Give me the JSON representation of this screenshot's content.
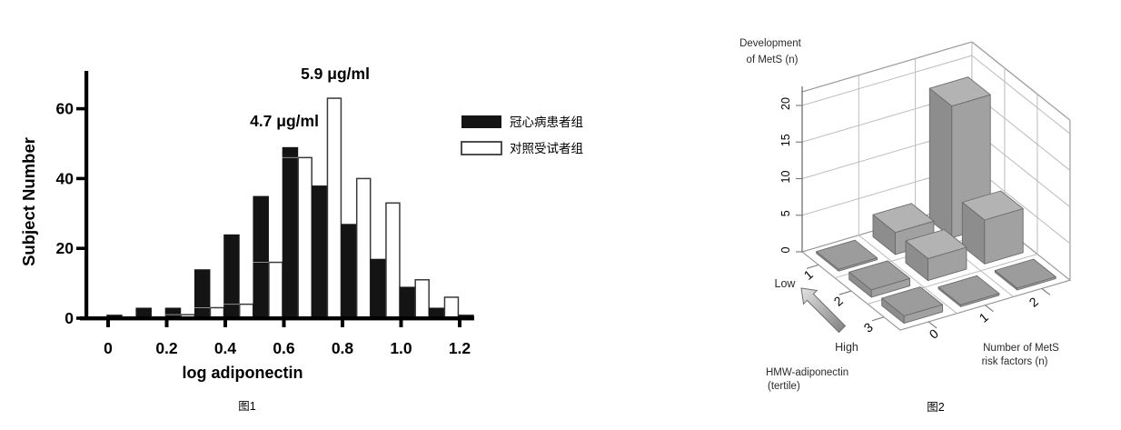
{
  "chart_data": [
    {
      "id": "figure-1",
      "type": "bar",
      "title": "图1",
      "xlabel": "log adiponectin",
      "ylabel": "Subject Number",
      "bin_width": 0.1,
      "categories": [
        0.0,
        0.1,
        0.2,
        0.3,
        0.4,
        0.5,
        0.6,
        0.7,
        0.8,
        0.9,
        1.0,
        1.1,
        1.2
      ],
      "series": [
        {
          "name": "冠心病患者组",
          "color": "#141414",
          "values": [
            1,
            3,
            3,
            14,
            24,
            35,
            49,
            38,
            27,
            17,
            9,
            3,
            1
          ]
        },
        {
          "name": "对照受试者组",
          "color": "#ffffff",
          "values": [
            null,
            null,
            1,
            3,
            4,
            16,
            46,
            63,
            40,
            33,
            11,
            6,
            null
          ]
        }
      ],
      "annotations": [
        {
          "text": "4.7 μg/ml",
          "series": "冠心病患者组"
        },
        {
          "text": "5.9 μg/ml",
          "series": "对照受试者组"
        }
      ],
      "x_tick_labels": [
        "0",
        "0.2",
        "0.4",
        "0.6",
        "0.8",
        "1.0",
        "1.2"
      ],
      "x_tick_values": [
        0,
        0.2,
        0.4,
        0.6,
        0.8,
        1.0,
        1.2
      ],
      "y_ticks": [
        0,
        20,
        40,
        60
      ],
      "ylim": [
        0,
        70
      ],
      "xlim": [
        -0.05,
        1.3
      ],
      "grid": false,
      "legend_position": "right"
    },
    {
      "id": "figure-2",
      "type": "bar3d",
      "title": "图2",
      "zlabel": "Development of MetS (n)",
      "zlabel_lines": [
        "Development",
        "of MetS (n)"
      ],
      "xlabel": "Number of MetS risk factors (n)",
      "xlabel_lines": [
        "Number of MetS",
        "risk factors (n)"
      ],
      "ylabel": "HMW-adiponectin (tertile)",
      "ylabel_lines": [
        "HMW-adiponectin",
        "(tertile)"
      ],
      "x_categories": [
        0,
        1,
        2
      ],
      "y_categories": [
        1,
        2,
        3
      ],
      "y_axis_annotations": {
        "low": "Low",
        "high": "High"
      },
      "z_ticks": [
        0,
        5,
        10,
        15,
        20
      ],
      "zlim": [
        0,
        21
      ],
      "values_note": "rows = HMW-adiponectin tertile 1..3 (Low to High), cols = number of MetS risk factors 0..2",
      "values": [
        [
          0,
          3,
          18
        ],
        [
          1,
          3,
          6
        ],
        [
          1,
          0,
          0
        ]
      ],
      "bar_colors": {
        "top": "#b3b3b3",
        "front": "#a1a1a1",
        "side": "#8d8d8d",
        "flat_tile": "#9c9c9c"
      }
    }
  ]
}
